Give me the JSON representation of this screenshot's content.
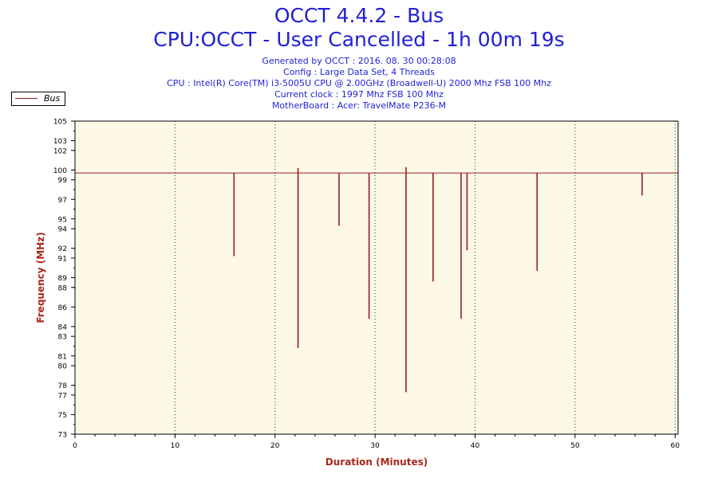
{
  "header": {
    "title": "OCCT 4.4.2 - Bus",
    "subtitle": "CPU:OCCT - User Cancelled - 1h 00m 19s",
    "info_lines": [
      "Generated by OCCT : 2016. 08. 30 00:28:08",
      "Config : Large Data Set, 4 Threads",
      "CPU : Intel(R) Core(TM) i3-5005U CPU @ 2.00GHz (Broadwell-U) 2000 Mhz FSB 100 Mhz",
      "Current clock : 1997 Mhz FSB 100 Mhz",
      "MotherBoard : Acer: TravelMate P236-M"
    ]
  },
  "legend": {
    "label": "Bus"
  },
  "colors": {
    "series": "#a01e1e",
    "plot_bg": "#fdf8e6",
    "title": "#1f1fd6",
    "axis_label": "#a8281c"
  },
  "chart_data": {
    "type": "line",
    "xlabel": "Duration (Minutes)",
    "ylabel": "Frequency (MHz)",
    "xlim": [
      0,
      60.3
    ],
    "ylim": [
      73,
      105
    ],
    "x_ticks": [
      0,
      10,
      20,
      30,
      40,
      50,
      60
    ],
    "y_ticks": [
      73,
      75,
      77,
      78,
      80,
      81,
      83,
      84,
      86,
      88,
      89,
      91,
      92,
      94,
      95,
      97,
      99,
      100,
      102,
      103,
      105
    ],
    "grid": {
      "x": true,
      "y": false
    },
    "legend_position": "top-left",
    "series": [
      {
        "name": "Bus",
        "baseline": 99.7,
        "x_range": [
          0,
          60.3
        ],
        "dips": [
          {
            "x": 15.9,
            "y": 91.2
          },
          {
            "x": 22.3,
            "y": 81.8
          },
          {
            "x": 26.4,
            "y": 94.3
          },
          {
            "x": 29.4,
            "y": 84.8
          },
          {
            "x": 33.1,
            "y": 77.3
          },
          {
            "x": 35.8,
            "y": 88.6
          },
          {
            "x": 38.6,
            "y": 84.8
          },
          {
            "x": 39.2,
            "y": 91.8
          },
          {
            "x": 46.2,
            "y": 89.7
          },
          {
            "x": 56.7,
            "y": 97.4
          }
        ],
        "spikes": [
          {
            "x": 22.3,
            "y": 100.2
          },
          {
            "x": 33.1,
            "y": 100.3
          }
        ]
      }
    ]
  }
}
